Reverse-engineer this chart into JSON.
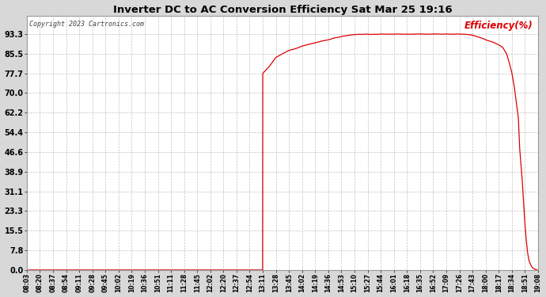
{
  "title": "Inverter DC to AC Conversion Efficiency Sat Mar 25 19:16",
  "copyright": "Copyright 2023 Cartronics.com",
  "legend_label": "Efficiency(%)",
  "line_color": "#dd0000",
  "background_color": "#d8d8d8",
  "plot_bg_color": "#ffffff",
  "grid_color": "#bbbbbb",
  "ylabel_color": "#dd0000",
  "copyright_color": "#444444",
  "title_color": "#000000",
  "ylim": [
    0.0,
    100.56
  ],
  "yticks": [
    0.0,
    7.8,
    15.5,
    23.3,
    31.1,
    38.9,
    46.6,
    54.4,
    62.2,
    70.0,
    77.7,
    85.5,
    93.3
  ],
  "xtick_labels": [
    "08:03",
    "08:20",
    "08:37",
    "08:54",
    "09:11",
    "09:28",
    "09:45",
    "10:02",
    "10:19",
    "10:36",
    "10:51",
    "11:11",
    "11:28",
    "11:45",
    "12:02",
    "12:20",
    "12:37",
    "12:54",
    "13:11",
    "13:28",
    "13:45",
    "14:02",
    "14:19",
    "14:36",
    "14:53",
    "15:10",
    "15:27",
    "15:44",
    "16:01",
    "16:18",
    "16:35",
    "16:52",
    "17:09",
    "17:26",
    "17:43",
    "18:00",
    "18:17",
    "18:34",
    "18:51",
    "19:08"
  ],
  "sunrise_tick": "13:11",
  "sunset_tick": "18:51",
  "sunrise_index": 18,
  "sunset_index": 38,
  "curve_x": [
    0,
    1,
    2,
    3,
    4,
    5,
    6,
    7,
    8,
    9,
    10,
    11,
    12,
    13,
    14,
    15,
    16,
    17,
    17.99,
    18.0,
    18.5,
    19.0,
    19.5,
    20.0,
    20.5,
    21.0,
    21.5,
    22.0,
    22.5,
    23.0,
    23.2,
    23.5,
    23.8,
    24.0,
    24.2,
    24.5,
    24.7,
    24.9,
    25.0,
    25.2,
    25.4,
    25.6,
    25.8,
    26.0,
    26.2,
    26.5,
    26.8,
    27.0,
    27.3,
    27.6,
    27.9,
    28.2,
    28.5,
    28.8,
    29.0,
    29.3,
    29.5,
    29.8,
    30.0,
    30.2,
    30.5,
    30.8,
    31.0,
    31.2,
    31.5,
    31.8,
    32.0,
    32.3,
    32.6,
    32.8,
    33.0,
    33.3,
    33.5,
    33.8,
    34.0,
    34.2,
    34.5,
    34.8,
    35.0,
    35.3,
    35.6,
    35.8,
    36.0,
    36.3,
    36.6,
    36.8,
    37.0,
    37.2,
    37.5,
    37.6,
    37.8,
    38.0,
    38.1,
    38.2,
    38.3,
    38.4,
    38.5,
    38.6,
    38.7,
    38.8,
    38.9,
    38.95,
    38.99,
    39.0
  ],
  "curve_y": [
    0,
    0,
    0,
    0,
    0,
    0,
    0,
    0,
    0,
    0,
    0,
    0,
    0,
    0,
    0,
    0,
    0,
    0,
    0.0,
    77.7,
    80.5,
    84.0,
    85.5,
    86.8,
    87.5,
    88.5,
    89.2,
    89.8,
    90.5,
    91.0,
    91.3,
    91.8,
    92.0,
    92.3,
    92.5,
    92.7,
    92.9,
    93.0,
    93.1,
    93.1,
    93.2,
    93.15,
    93.2,
    93.25,
    93.1,
    93.2,
    93.15,
    93.3,
    93.2,
    93.25,
    93.2,
    93.3,
    93.25,
    93.2,
    93.25,
    93.2,
    93.25,
    93.3,
    93.3,
    93.25,
    93.2,
    93.25,
    93.3,
    93.3,
    93.25,
    93.2,
    93.3,
    93.25,
    93.2,
    93.3,
    93.25,
    93.2,
    93.15,
    93.0,
    92.8,
    92.5,
    92.0,
    91.5,
    91.0,
    90.5,
    90.0,
    89.5,
    89.0,
    88.0,
    85.5,
    82.0,
    78.0,
    72.0,
    60.0,
    48.0,
    35.0,
    18.0,
    12.0,
    7.0,
    4.0,
    2.5,
    1.5,
    0.8,
    0.5,
    0.2,
    0.0,
    0.0,
    0.0,
    0.0
  ]
}
